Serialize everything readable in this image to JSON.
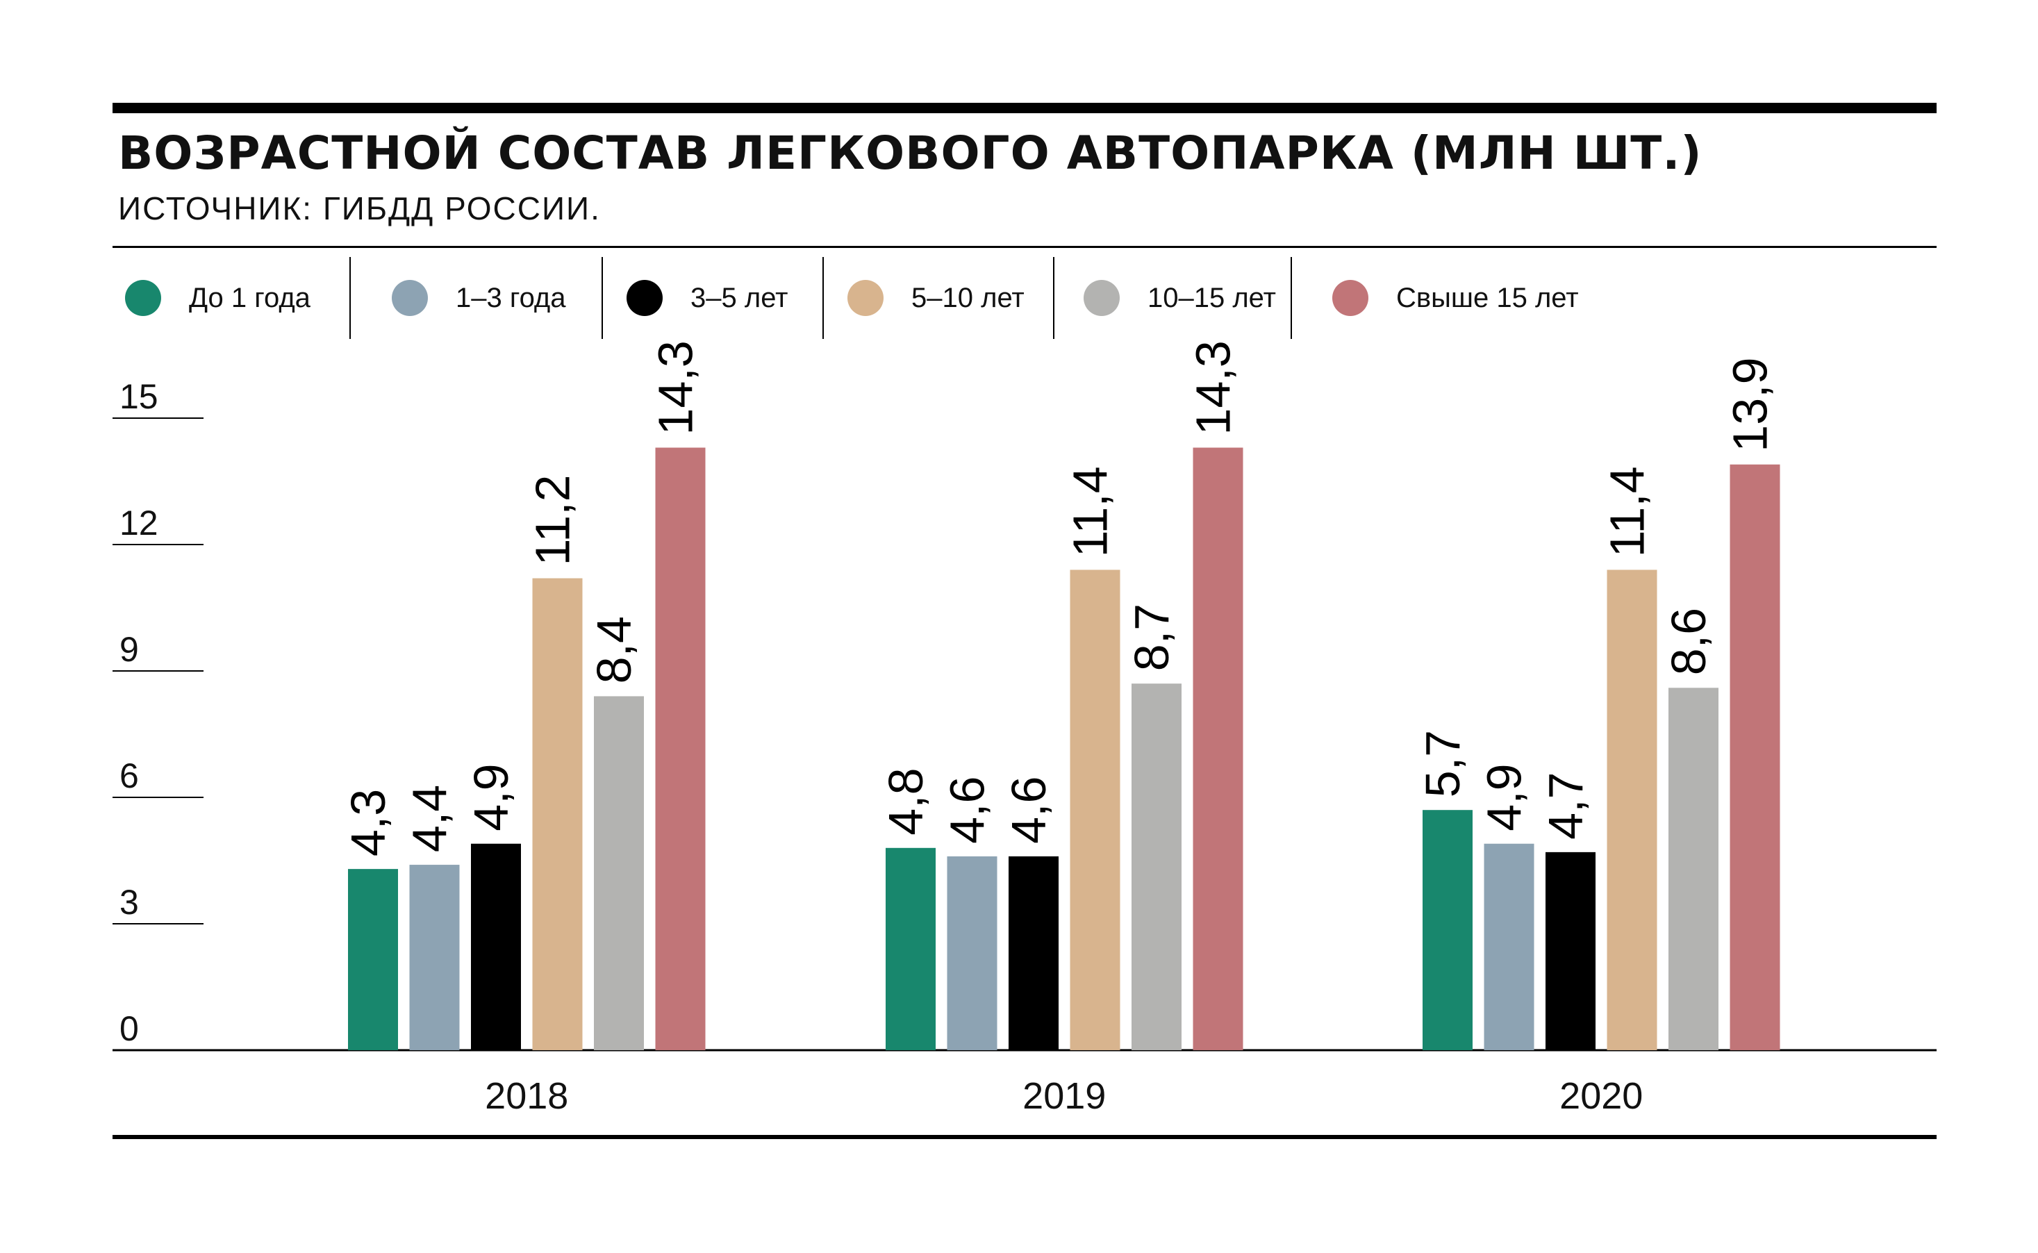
{
  "title": "ВОЗРАСТНОЙ СОСТАВ ЛЕГКОВОГО АВТОПАРКА (МЛН ШТ.)",
  "source": "ИСТОЧНИК: ГИБДД РОССИИ.",
  "legend": [
    {
      "label": "До 1 года",
      "color": "#18876d"
    },
    {
      "label": "1–3 года",
      "color": "#8da3b3"
    },
    {
      "label": "3–5 лет",
      "color": "#000000"
    },
    {
      "label": "5–10 лет",
      "color": "#d8b48e"
    },
    {
      "label": "10–15 лет",
      "color": "#b3b3b1"
    },
    {
      "label": "Свыше 15 лет",
      "color": "#c17578"
    }
  ],
  "chart_data": {
    "type": "bar",
    "categories": [
      "2018",
      "2019",
      "2020"
    ],
    "series": [
      {
        "name": "До 1 года",
        "values": [
          4.3,
          4.8,
          5.7
        ]
      },
      {
        "name": "1–3 года",
        "values": [
          4.4,
          4.6,
          4.9
        ]
      },
      {
        "name": "3–5 лет",
        "values": [
          4.9,
          4.6,
          4.7
        ]
      },
      {
        "name": "5–10 лет",
        "values": [
          11.2,
          11.4,
          11.4
        ]
      },
      {
        "name": "10–15 лет",
        "values": [
          8.4,
          8.7,
          8.6
        ]
      },
      {
        "name": "Свыше 15 лет",
        "values": [
          14.3,
          14.3,
          13.9
        ]
      }
    ],
    "value_labels": [
      [
        "4,3",
        "4,8",
        "5,7"
      ],
      [
        "4,4",
        "4,6",
        "4,9"
      ],
      [
        "4,9",
        "4,6",
        "4,7"
      ],
      [
        "11,2",
        "11,4",
        "11,4"
      ],
      [
        "8,4",
        "8,7",
        "8,6"
      ],
      [
        "14,3",
        "14,3",
        "13,9"
      ]
    ],
    "yticks": [
      "0",
      "3",
      "6",
      "9",
      "12",
      "15"
    ],
    "ylim": [
      0,
      15
    ],
    "grid": false,
    "legend_position": "top"
  }
}
